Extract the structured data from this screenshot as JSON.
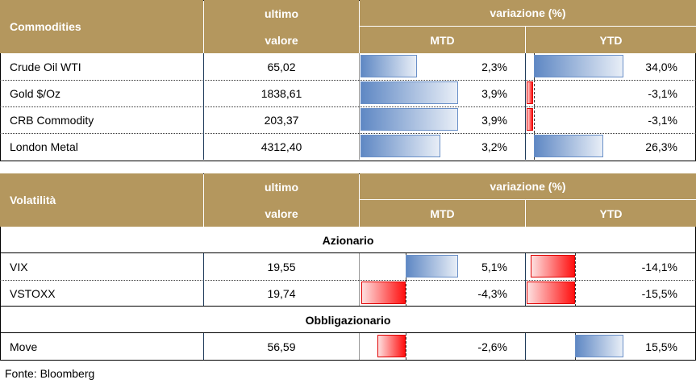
{
  "commodities": {
    "header": {
      "name": "Commodities",
      "value_top": "ultimo",
      "value_bottom": "valore",
      "change": "variazione (%)",
      "mtd": "MTD",
      "ytd": "YTD"
    },
    "rows": [
      {
        "name": "Crude Oil WTI",
        "value": "65,02",
        "mtd": "2,3%",
        "ytd": "34,0%"
      },
      {
        "name": "Gold $/Oz",
        "value": "1838,61",
        "mtd": "3,9%",
        "ytd": "-3,1%"
      },
      {
        "name": "CRB Commodity",
        "value": "203,37",
        "mtd": "3,9%",
        "ytd": "-3,1%"
      },
      {
        "name": "London Metal",
        "value": "4312,40",
        "mtd": "3,2%",
        "ytd": "26,3%"
      }
    ]
  },
  "volatility": {
    "header": {
      "name": "Volatilità",
      "value_top": "ultimo",
      "value_bottom": "valore",
      "change": "variazione (%)",
      "mtd": "MTD",
      "ytd": "YTD"
    },
    "sections": [
      {
        "title": "Azionario",
        "rows": [
          {
            "name": "VIX",
            "value": "19,55",
            "mtd": "5,1%",
            "ytd": "-14,1%"
          },
          {
            "name": "VSTOXX",
            "value": "19,74",
            "mtd": "-4,3%",
            "ytd": "-15,5%"
          }
        ]
      },
      {
        "title": "Obbligazionario",
        "rows": [
          {
            "name": "Move",
            "value": "56,59",
            "mtd": "-2,6%",
            "ytd": "15,5%"
          }
        ]
      }
    ]
  },
  "source": "Fonte: Bloomberg",
  "colors": {
    "header_bg": "#b4975e",
    "positive_bar": "#5f88c4",
    "negative_bar": "#ff1010"
  }
}
